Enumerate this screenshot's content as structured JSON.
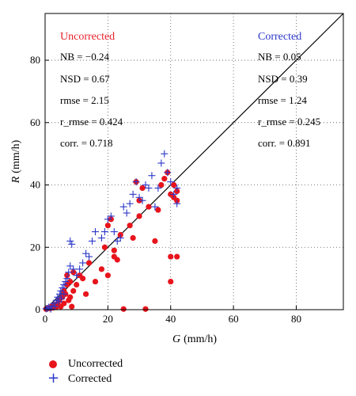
{
  "chart_data": {
    "type": "scatter",
    "xlabel_var": "G",
    "xlabel_unit": "(mm/h)",
    "ylabel_var": "R",
    "ylabel_unit": "(mm/h)",
    "xlim": [
      0,
      95
    ],
    "ylim": [
      0,
      95
    ],
    "x_ticks": [
      0,
      20,
      40,
      60,
      80
    ],
    "y_ticks": [
      0,
      20,
      40,
      60,
      80
    ],
    "grid": "dotted",
    "reference_line": "1:1",
    "legend_placement": "below-left",
    "annotations": {
      "uncorrected": {
        "heading": "Uncorrected",
        "lines": [
          "NB = −0.24",
          "NSD = 0.67",
          "rmse = 2.15",
          "r_rmse = 0.424",
          "corr. = 0.718"
        ]
      },
      "corrected": {
        "heading": "Corrected",
        "lines": [
          "NB = 0.05",
          "NSD = 0.39",
          "rmse = 1.24",
          "r_rmse = 0.245",
          "corr. = 0.891"
        ]
      }
    },
    "colors": {
      "uncorrected": "#e8141c",
      "corrected": "#2a35c8"
    },
    "series": [
      {
        "name": "Uncorrected",
        "marker": "circle",
        "points": [
          [
            0.3,
            0.2
          ],
          [
            0.8,
            0.5
          ],
          [
            1.5,
            0.4
          ],
          [
            2,
            1
          ],
          [
            2.5,
            0.6
          ],
          [
            3,
            1.5
          ],
          [
            3.5,
            0.8
          ],
          [
            4,
            2
          ],
          [
            4.5,
            3
          ],
          [
            5,
            1
          ],
          [
            5.5,
            4
          ],
          [
            6,
            6
          ],
          [
            6,
            2
          ],
          [
            6.5,
            5
          ],
          [
            7,
            8
          ],
          [
            7,
            11
          ],
          [
            7.5,
            3
          ],
          [
            8,
            9
          ],
          [
            8,
            4
          ],
          [
            8.5,
            1
          ],
          [
            9,
            12
          ],
          [
            9,
            6
          ],
          [
            10,
            8
          ],
          [
            11,
            11
          ],
          [
            12,
            10
          ],
          [
            13,
            5
          ],
          [
            14,
            15
          ],
          [
            16,
            9
          ],
          [
            18,
            13
          ],
          [
            19,
            20
          ],
          [
            20,
            11
          ],
          [
            20,
            27
          ],
          [
            21,
            29
          ],
          [
            22,
            19
          ],
          [
            22,
            17
          ],
          [
            23,
            16
          ],
          [
            24,
            24
          ],
          [
            25,
            0.2
          ],
          [
            27,
            27
          ],
          [
            28,
            23
          ],
          [
            29,
            41
          ],
          [
            30,
            35
          ],
          [
            30,
            30
          ],
          [
            31,
            39
          ],
          [
            32,
            0.2
          ],
          [
            33,
            33
          ],
          [
            35,
            22
          ],
          [
            36,
            32
          ],
          [
            37,
            40
          ],
          [
            38,
            42
          ],
          [
            39,
            44
          ],
          [
            40,
            17
          ],
          [
            40,
            9
          ],
          [
            40,
            37
          ],
          [
            41,
            36
          ],
          [
            41,
            40
          ],
          [
            42,
            17
          ],
          [
            42,
            35
          ],
          [
            42,
            38
          ]
        ]
      },
      {
        "name": "Corrected",
        "marker": "plus",
        "points": [
          [
            0.3,
            0.3
          ],
          [
            0.8,
            0.4
          ],
          [
            1.2,
            0.8
          ],
          [
            1.8,
            0.2
          ],
          [
            2.2,
            1.2
          ],
          [
            2.8,
            2
          ],
          [
            3.2,
            1
          ],
          [
            3.6,
            3
          ],
          [
            4,
            4
          ],
          [
            4.3,
            2.5
          ],
          [
            4.7,
            5
          ],
          [
            5,
            6
          ],
          [
            5.2,
            3.5
          ],
          [
            5.5,
            7
          ],
          [
            6,
            5
          ],
          [
            6,
            8
          ],
          [
            6.5,
            9
          ],
          [
            7,
            10
          ],
          [
            7.5,
            12
          ],
          [
            8,
            14
          ],
          [
            8,
            22
          ],
          [
            8.5,
            21
          ],
          [
            9,
            13
          ],
          [
            10,
            11
          ],
          [
            11,
            13
          ],
          [
            12,
            15
          ],
          [
            13,
            18
          ],
          [
            14,
            17
          ],
          [
            15,
            22
          ],
          [
            16,
            25
          ],
          [
            18,
            23
          ],
          [
            19,
            25
          ],
          [
            20,
            29
          ],
          [
            21,
            30
          ],
          [
            22,
            25
          ],
          [
            23,
            22
          ],
          [
            24,
            23
          ],
          [
            25,
            33
          ],
          [
            26,
            31
          ],
          [
            27,
            34
          ],
          [
            28,
            37
          ],
          [
            29,
            41
          ],
          [
            30,
            36
          ],
          [
            31,
            35
          ],
          [
            32,
            40
          ],
          [
            33,
            39
          ],
          [
            34,
            43
          ],
          [
            35,
            33
          ],
          [
            36,
            39
          ],
          [
            37,
            47
          ],
          [
            38,
            50
          ],
          [
            39,
            44
          ],
          [
            40,
            41
          ],
          [
            41,
            37
          ],
          [
            42,
            34
          ],
          [
            42,
            39
          ]
        ]
      }
    ]
  },
  "legend": [
    {
      "label": "Uncorrected",
      "marker": "circle"
    },
    {
      "label": "Corrected",
      "marker": "plus"
    }
  ]
}
